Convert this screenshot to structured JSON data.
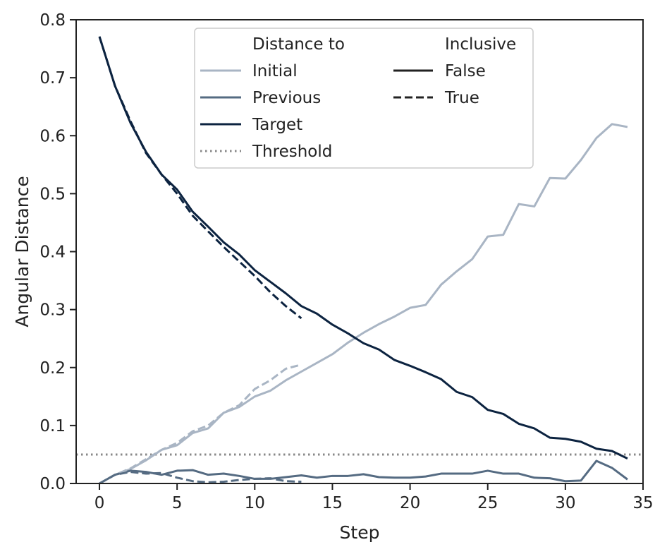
{
  "chart_data": {
    "type": "line",
    "xlabel": "Step",
    "ylabel": "Angular Distance",
    "xlim": [
      -1.5,
      35
    ],
    "ylim": [
      0,
      0.8
    ],
    "xticks": [
      0,
      5,
      10,
      15,
      20,
      25,
      30,
      35
    ],
    "yticks": [
      0.0,
      0.1,
      0.2,
      0.3,
      0.4,
      0.5,
      0.6,
      0.7,
      0.8
    ],
    "xtick_labels": [
      "0",
      "5",
      "10",
      "15",
      "20",
      "25",
      "30",
      "35"
    ],
    "ytick_labels": [
      "0.0",
      "0.1",
      "0.2",
      "0.3",
      "0.4",
      "0.5",
      "0.6",
      "0.7",
      "0.8"
    ],
    "grid": false,
    "legend": {
      "placement": "top-center",
      "hue_title": "Distance to",
      "style_title": "Inclusive",
      "hue_entries": [
        {
          "label": "Initial",
          "color": "#a9b5c4",
          "style": "solid"
        },
        {
          "label": "Previous",
          "color": "#556b82",
          "style": "solid"
        },
        {
          "label": "Target",
          "color": "#0c2340",
          "style": "solid"
        },
        {
          "label": "Threshold",
          "color": "#888888",
          "style": "dotted"
        }
      ],
      "style_entries": [
        {
          "label": "False",
          "color": "#222222",
          "style": "solid"
        },
        {
          "label": "True",
          "color": "#222222",
          "style": "dashed"
        }
      ]
    },
    "threshold": {
      "name": "Threshold",
      "value": 0.05,
      "color": "#888888"
    },
    "series": [
      {
        "name": "Initial",
        "inclusive": "False",
        "color": "#a9b5c4",
        "dash": "solid",
        "x": [
          0,
          1,
          2,
          3,
          4,
          5,
          6,
          7,
          8,
          9,
          10,
          11,
          12,
          13,
          14,
          15,
          16,
          17,
          18,
          19,
          20,
          21,
          22,
          23,
          24,
          25,
          26,
          27,
          28,
          29,
          30,
          31,
          32,
          33,
          34
        ],
        "values": [
          0.0,
          0.015,
          0.025,
          0.04,
          0.058,
          0.066,
          0.087,
          0.095,
          0.122,
          0.132,
          0.15,
          0.16,
          0.178,
          0.193,
          0.208,
          0.223,
          0.243,
          0.26,
          0.275,
          0.288,
          0.303,
          0.308,
          0.343,
          0.366,
          0.387,
          0.426,
          0.429,
          0.482,
          0.478,
          0.527,
          0.526,
          0.558,
          0.596,
          0.62,
          0.615
        ]
      },
      {
        "name": "Previous",
        "inclusive": "False",
        "color": "#556b82",
        "dash": "solid",
        "x": [
          0,
          1,
          2,
          3,
          4,
          5,
          6,
          7,
          8,
          9,
          10,
          11,
          12,
          13,
          14,
          15,
          16,
          17,
          18,
          19,
          20,
          21,
          22,
          23,
          24,
          25,
          26,
          27,
          28,
          29,
          30,
          31,
          32,
          33,
          34
        ],
        "values": [
          0.0,
          0.015,
          0.022,
          0.02,
          0.015,
          0.022,
          0.023,
          0.015,
          0.017,
          0.013,
          0.008,
          0.008,
          0.011,
          0.014,
          0.01,
          0.013,
          0.013,
          0.016,
          0.011,
          0.01,
          0.01,
          0.012,
          0.017,
          0.017,
          0.017,
          0.022,
          0.017,
          0.017,
          0.01,
          0.009,
          0.004,
          0.005,
          0.039,
          0.027,
          0.007
        ]
      },
      {
        "name": "Target",
        "inclusive": "False",
        "color": "#0c2340",
        "dash": "solid",
        "x": [
          0,
          1,
          2,
          3,
          4,
          5,
          6,
          7,
          8,
          9,
          10,
          11,
          12,
          13,
          14,
          15,
          16,
          17,
          18,
          19,
          20,
          21,
          22,
          23,
          24,
          25,
          26,
          27,
          28,
          29,
          30,
          31,
          32,
          33,
          34
        ],
        "values": [
          0.771,
          0.686,
          0.622,
          0.572,
          0.533,
          0.507,
          0.469,
          0.443,
          0.416,
          0.395,
          0.368,
          0.348,
          0.328,
          0.306,
          0.293,
          0.274,
          0.259,
          0.242,
          0.231,
          0.213,
          0.203,
          0.192,
          0.18,
          0.158,
          0.149,
          0.127,
          0.12,
          0.103,
          0.095,
          0.079,
          0.077,
          0.072,
          0.06,
          0.056,
          0.043
        ]
      },
      {
        "name": "Initial",
        "inclusive": "True",
        "color": "#a9b5c4",
        "dash": "dashed",
        "x": [
          0,
          1,
          2,
          3,
          4,
          5,
          6,
          7,
          8,
          9,
          10,
          11,
          12,
          13
        ],
        "values": [
          0.0,
          0.015,
          0.026,
          0.042,
          0.058,
          0.07,
          0.09,
          0.1,
          0.122,
          0.135,
          0.163,
          0.178,
          0.198,
          0.205
        ]
      },
      {
        "name": "Previous",
        "inclusive": "True",
        "color": "#556b82",
        "dash": "dashed",
        "x": [
          0,
          1,
          2,
          3,
          4,
          5,
          6,
          7,
          8,
          9,
          10,
          11,
          12,
          13
        ],
        "values": [
          0.0,
          0.015,
          0.02,
          0.017,
          0.018,
          0.01,
          0.004,
          0.002,
          0.003,
          0.006,
          0.008,
          0.009,
          0.004,
          0.003
        ]
      },
      {
        "name": "Target",
        "inclusive": "True",
        "color": "#0c2340",
        "dash": "dashed",
        "x": [
          0,
          1,
          2,
          3,
          4,
          5,
          6,
          7,
          8,
          9,
          10,
          11,
          12,
          13
        ],
        "values": [
          0.771,
          0.686,
          0.625,
          0.57,
          0.533,
          0.5,
          0.462,
          0.435,
          0.408,
          0.383,
          0.358,
          0.33,
          0.306,
          0.285
        ]
      }
    ]
  }
}
